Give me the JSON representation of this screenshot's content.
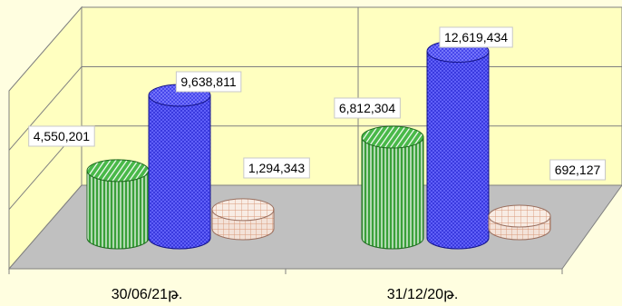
{
  "chart_data": {
    "type": "bar",
    "style": "3d-cylinder",
    "categories": [
      "30/06/21թ.",
      "31/12/20թ."
    ],
    "series": [
      {
        "values": [
          4550201,
          6812304
        ],
        "color": "#3aa03a",
        "pattern": "vertical-stripes"
      },
      {
        "values": [
          9638811,
          12619434
        ],
        "color": "#2f2fd8",
        "pattern": "crosshatch"
      },
      {
        "values": [
          1294343,
          692127
        ],
        "color": "#e8b8a0",
        "pattern": "grid"
      }
    ],
    "data_labels": [
      [
        "4,550,201",
        "9,638,811",
        "1,294,343"
      ],
      [
        "6,812,304",
        "12,619,434",
        "692,127"
      ]
    ],
    "ylim": [
      0,
      14000000
    ],
    "gridlines": true,
    "legend": "none"
  }
}
